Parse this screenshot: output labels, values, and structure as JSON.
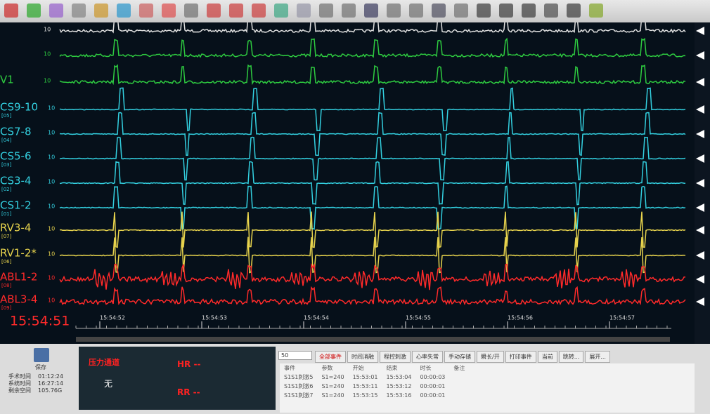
{
  "trace": {
    "channels": [
      {
        "gain": "10"
      },
      {
        "gain": "10"
      },
      {
        "label": "V1",
        "gain": "10"
      },
      {
        "label": "CS9-10",
        "sub": "[05]",
        "gain": "10"
      },
      {
        "label": "CS7-8",
        "sub": "[04]",
        "gain": "10"
      },
      {
        "label": "CS5-6",
        "sub": "[03]",
        "gain": "10"
      },
      {
        "label": "CS3-4",
        "sub": "[02]",
        "gain": "10"
      },
      {
        "label": "CS1-2",
        "sub": "[01]",
        "gain": "10"
      },
      {
        "label": "RV3-4",
        "sub": "[07]",
        "gain": "10"
      },
      {
        "label": "RV1-2*",
        "sub": "[06]",
        "gain": "10"
      },
      {
        "label": "ABL1-2",
        "sub": "[08]",
        "gain": "10"
      },
      {
        "label": "ABL3-4",
        "sub": "[09]",
        "gain": "10"
      }
    ],
    "clock": "15:54:51",
    "time_ticks": [
      "15:54:52",
      "15:54:53",
      "15:54:54",
      "15:54:55",
      "15:54:56",
      "15:54:57"
    ]
  },
  "status": {
    "save": "保存",
    "rows": [
      [
        "手术时间",
        "01:12:24"
      ],
      [
        "系统时间",
        "16:27:14"
      ],
      [
        "剩余空间",
        "105.76G"
      ]
    ]
  },
  "pressure": {
    "title": "压力通道",
    "value": "无",
    "hr": "HR --",
    "rr": "RR --"
  },
  "events": {
    "page_size": "50",
    "tabs": [
      "全部事件",
      "时间消融",
      "程控刺激",
      "心率失常",
      "手动存储",
      "瞬长/开",
      "打印事件",
      "当前"
    ],
    "buttons": [
      "跳转...",
      "展开..."
    ],
    "columns": [
      "事件",
      "参数",
      "开始",
      "结束",
      "时长",
      "备注"
    ],
    "rows": [
      [
        "S1S1刺激5",
        "S1=240",
        "15:53:01",
        "15:53:04",
        "00:00:03"
      ],
      [
        "S1S1刺激6",
        "S1=240",
        "15:53:11",
        "15:53:12",
        "00:00:01"
      ],
      [
        "S1S1刺激7",
        "S1=240",
        "15:53:15",
        "15:53:16",
        "00:00:01"
      ]
    ]
  }
}
